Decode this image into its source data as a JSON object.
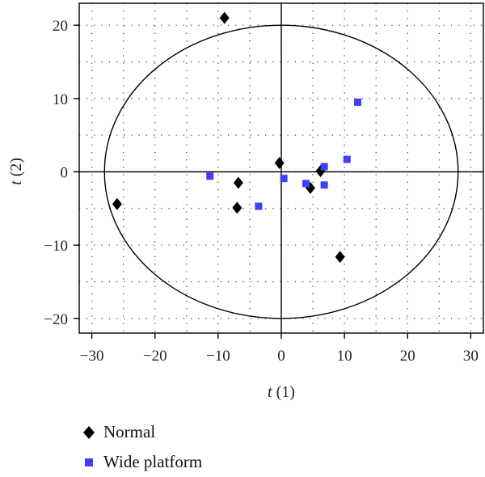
{
  "chart_data": {
    "type": "scatter",
    "xlabel_var": "t",
    "xlabel_idx": "(1)",
    "ylabel_var": "t",
    "ylabel_idx": "(2)",
    "xlim": [
      -32,
      32
    ],
    "ylim": [
      -22,
      23
    ],
    "x_ticks": [
      -30,
      -20,
      -10,
      0,
      10,
      20,
      30
    ],
    "y_ticks": [
      -20,
      -10,
      0,
      10,
      20
    ],
    "x_tick_labels": [
      "−30",
      "−20",
      "−10",
      "0",
      "10",
      "20",
      "30"
    ],
    "y_tick_labels": [
      "−20",
      "−10",
      "0",
      "10",
      "20"
    ],
    "grid": true,
    "ellipse": {
      "rx": 28,
      "ry": 20,
      "cx": 0,
      "cy": 0
    },
    "series": [
      {
        "name": "Normal",
        "marker": "diamond",
        "color": "#000000",
        "points": [
          [
            -9.0,
            21.0
          ],
          [
            -26.0,
            -4.4
          ],
          [
            -6.8,
            -1.5
          ],
          [
            -7.0,
            -4.9
          ],
          [
            -0.3,
            1.2
          ],
          [
            4.6,
            -2.2
          ],
          [
            6.2,
            0.1
          ],
          [
            9.3,
            -11.6
          ]
        ]
      },
      {
        "name": "Wide platform",
        "marker": "square",
        "color": "#3f3ff7",
        "points": [
          [
            -11.3,
            -0.6
          ],
          [
            -3.6,
            -4.7
          ],
          [
            0.4,
            -0.9
          ],
          [
            3.9,
            -1.6
          ],
          [
            6.8,
            0.7
          ],
          [
            6.8,
            -1.8
          ],
          [
            10.4,
            1.7
          ],
          [
            12.1,
            9.5
          ]
        ]
      }
    ]
  }
}
